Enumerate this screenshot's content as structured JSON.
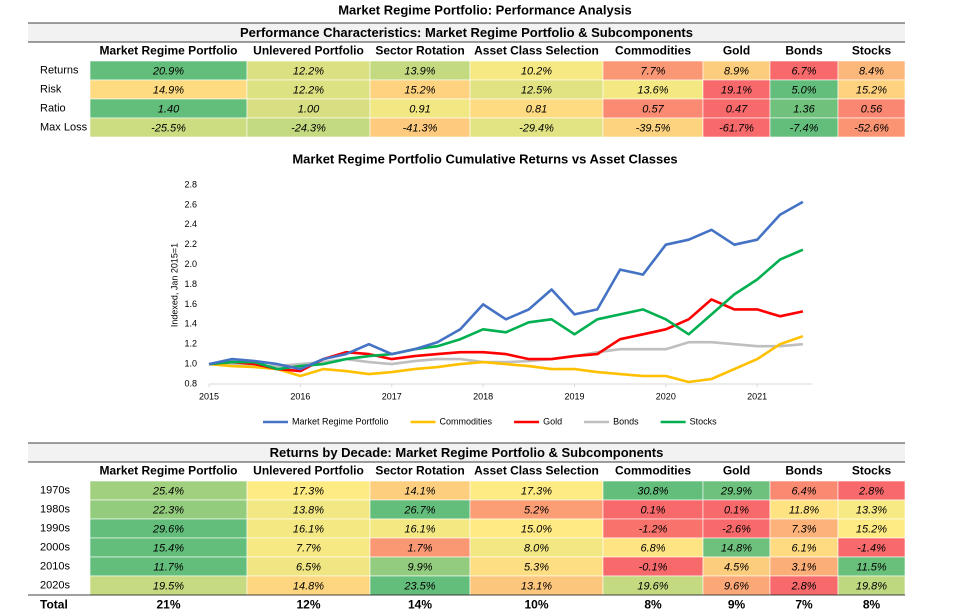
{
  "title": "Market Regime Portfolio: Performance Analysis",
  "tables": [
    {
      "title": "Performance Characteristics: Market Regime Portfolio & Subcomponents",
      "columns": [
        "Market Regime Portfolio",
        "Unlevered Portfolio",
        "Sector Rotation",
        "Asset Class Selection",
        "Commodities",
        "Gold",
        "Bonds",
        "Stocks"
      ],
      "colors": [
        "#f8696b",
        "#ffeb84",
        "#63be7b"
      ],
      "rows": [
        {
          "label": "Returns",
          "values": [
            20.9,
            12.2,
            13.9,
            10.2,
            7.7,
            8.9,
            6.7,
            8.4
          ],
          "value_labels": [
            "20.9%",
            "12.2%",
            "13.9%",
            "10.2%",
            "7.7%",
            "8.9%",
            "6.7%",
            "8.4%"
          ]
        },
        {
          "label": "Risk",
          "values": [
            14.9,
            12.2,
            15.2,
            12.5,
            13.6,
            19.1,
            5.0,
            15.2
          ],
          "value_labels": [
            "14.9%",
            "12.2%",
            "15.2%",
            "12.5%",
            "13.6%",
            "19.1%",
            "5.0%",
            "15.2%"
          ],
          "reverse_colors": true
        },
        {
          "label": "Ratio",
          "values": [
            1.4,
            1.0,
            0.91,
            0.81,
            0.57,
            0.47,
            1.36,
            0.56
          ],
          "value_labels": [
            "1.40",
            "1.00",
            "0.91",
            "0.81",
            "0.57",
            "0.47",
            "1.36",
            "0.56"
          ]
        },
        {
          "label": "Max Loss",
          "values": [
            -25.5,
            -24.3,
            -41.3,
            -29.4,
            -39.5,
            -61.7,
            -7.4,
            -52.6
          ],
          "value_labels": [
            "-25.5%",
            "-24.3%",
            "-41.3%",
            "-29.4%",
            "-39.5%",
            "-61.7%",
            "-7.4%",
            "-52.6%"
          ]
        }
      ]
    },
    {
      "title": "Returns by Decade: Market Regime Portfolio & Subcomponents",
      "columns": [
        "Market Regime Portfolio",
        "Unlevered Portfolio",
        "Sector Rotation",
        "Asset Class Selection",
        "Commodities",
        "Gold",
        "Bonds",
        "Stocks"
      ],
      "colors": [
        "#f8696b",
        "#ffeb84",
        "#63be7b"
      ],
      "rows": [
        {
          "label": "1970s",
          "values": [
            25.4,
            17.3,
            14.1,
            17.3,
            30.8,
            29.9,
            6.4,
            2.8
          ],
          "value_labels": [
            "25.4%",
            "17.3%",
            "14.1%",
            "17.3%",
            "30.8%",
            "29.9%",
            "6.4%",
            "2.8%"
          ]
        },
        {
          "label": "1980s",
          "values": [
            22.3,
            13.8,
            26.7,
            5.2,
            0.1,
            0.1,
            11.8,
            13.3
          ],
          "value_labels": [
            "22.3%",
            "13.8%",
            "26.7%",
            "5.2%",
            "0.1%",
            "0.1%",
            "11.8%",
            "13.3%"
          ]
        },
        {
          "label": "1990s",
          "values": [
            29.6,
            16.1,
            16.1,
            15.0,
            -1.2,
            -2.6,
            7.3,
            15.2
          ],
          "value_labels": [
            "29.6%",
            "16.1%",
            "16.1%",
            "15.0%",
            "-1.2%",
            "-2.6%",
            "7.3%",
            "15.2%"
          ]
        },
        {
          "label": "2000s",
          "values": [
            15.4,
            7.7,
            1.7,
            8.0,
            6.8,
            14.8,
            6.1,
            -1.4
          ],
          "value_labels": [
            "15.4%",
            "7.7%",
            "1.7%",
            "8.0%",
            "6.8%",
            "14.8%",
            "6.1%",
            "-1.4%"
          ]
        },
        {
          "label": "2010s",
          "values": [
            11.7,
            6.5,
            9.9,
            5.3,
            -0.1,
            4.5,
            3.1,
            11.5
          ],
          "value_labels": [
            "11.7%",
            "6.5%",
            "9.9%",
            "5.3%",
            "-0.1%",
            "4.5%",
            "3.1%",
            "11.5%"
          ]
        },
        {
          "label": "2020s",
          "values": [
            19.5,
            14.8,
            23.5,
            13.1,
            19.6,
            9.6,
            2.8,
            19.8
          ],
          "value_labels": [
            "19.5%",
            "14.8%",
            "23.5%",
            "13.1%",
            "19.6%",
            "9.6%",
            "2.8%",
            "19.8%"
          ]
        }
      ],
      "total": {
        "label": "Total",
        "values": [
          21,
          12,
          14,
          10,
          8,
          9,
          7,
          8
        ],
        "value_labels": [
          "21%",
          "12%",
          "14%",
          "10%",
          "8%",
          "9%",
          "7%",
          "8%"
        ]
      }
    }
  ],
  "chart_data": {
    "type": "line",
    "title": "Market Regime Portfolio Cumulative Returns vs Asset Classes",
    "y_label": "Indexed, Jan 2015=1",
    "x": [
      2015,
      2015.25,
      2015.5,
      2015.75,
      2016,
      2016.25,
      2016.5,
      2016.75,
      2017,
      2017.25,
      2017.5,
      2017.75,
      2018,
      2018.25,
      2018.5,
      2018.75,
      2019,
      2019.25,
      2019.5,
      2019.75,
      2020,
      2020.25,
      2020.5,
      2020.75,
      2021,
      2021.25,
      2021.5
    ],
    "xlim": [
      2015,
      2021.6
    ],
    "xticks": [
      2015,
      2016,
      2017,
      2018,
      2019,
      2020,
      2021
    ],
    "ylim": [
      0.8,
      2.8
    ],
    "yticks": [
      0.8,
      {
        "value": 1,
        "label": "1.0"
      },
      1.2,
      1.4,
      1.6,
      1.8,
      {
        "value": 2,
        "label": "2.0"
      },
      2.2,
      2.4,
      2.6,
      2.8
    ],
    "legend": "bottom",
    "series": [
      {
        "name": "Market Regime Portfolio",
        "color": "#4472c4",
        "values": [
          1.0,
          1.05,
          1.03,
          1.0,
          0.95,
          1.05,
          1.1,
          1.2,
          1.1,
          1.15,
          1.22,
          1.35,
          1.6,
          1.45,
          1.55,
          1.75,
          1.5,
          1.55,
          1.95,
          1.9,
          2.2,
          2.25,
          2.35,
          2.2,
          2.25,
          2.5,
          2.63
        ]
      },
      {
        "name": "Commodities",
        "color": "#ffc000",
        "values": [
          1.0,
          0.98,
          0.97,
          0.95,
          0.88,
          0.95,
          0.93,
          0.9,
          0.92,
          0.95,
          0.97,
          1.0,
          1.02,
          1.0,
          0.98,
          0.95,
          0.95,
          0.92,
          0.9,
          0.88,
          0.88,
          0.82,
          0.85,
          0.95,
          1.05,
          1.2,
          1.28
        ]
      },
      {
        "name": "Gold",
        "color": "#ff0000",
        "values": [
          1.0,
          1.02,
          1.0,
          0.95,
          0.93,
          1.05,
          1.12,
          1.1,
          1.05,
          1.08,
          1.1,
          1.12,
          1.12,
          1.1,
          1.05,
          1.05,
          1.08,
          1.1,
          1.25,
          1.3,
          1.35,
          1.45,
          1.65,
          1.55,
          1.55,
          1.48,
          1.53
        ]
      },
      {
        "name": "Bonds",
        "color": "#bfbfbf",
        "values": [
          1.0,
          1.0,
          0.98,
          0.98,
          1.0,
          1.02,
          1.05,
          1.02,
          1.0,
          1.03,
          1.05,
          1.05,
          1.02,
          1.02,
          1.03,
          1.05,
          1.08,
          1.12,
          1.15,
          1.15,
          1.15,
          1.22,
          1.22,
          1.2,
          1.18,
          1.18,
          1.2
        ]
      },
      {
        "name": "Stocks",
        "color": "#00b050",
        "values": [
          1.0,
          1.02,
          1.02,
          0.95,
          0.98,
          1.0,
          1.05,
          1.08,
          1.1,
          1.15,
          1.18,
          1.25,
          1.35,
          1.32,
          1.42,
          1.45,
          1.3,
          1.45,
          1.5,
          1.55,
          1.45,
          1.3,
          1.5,
          1.7,
          1.85,
          2.05,
          2.15
        ]
      }
    ]
  }
}
